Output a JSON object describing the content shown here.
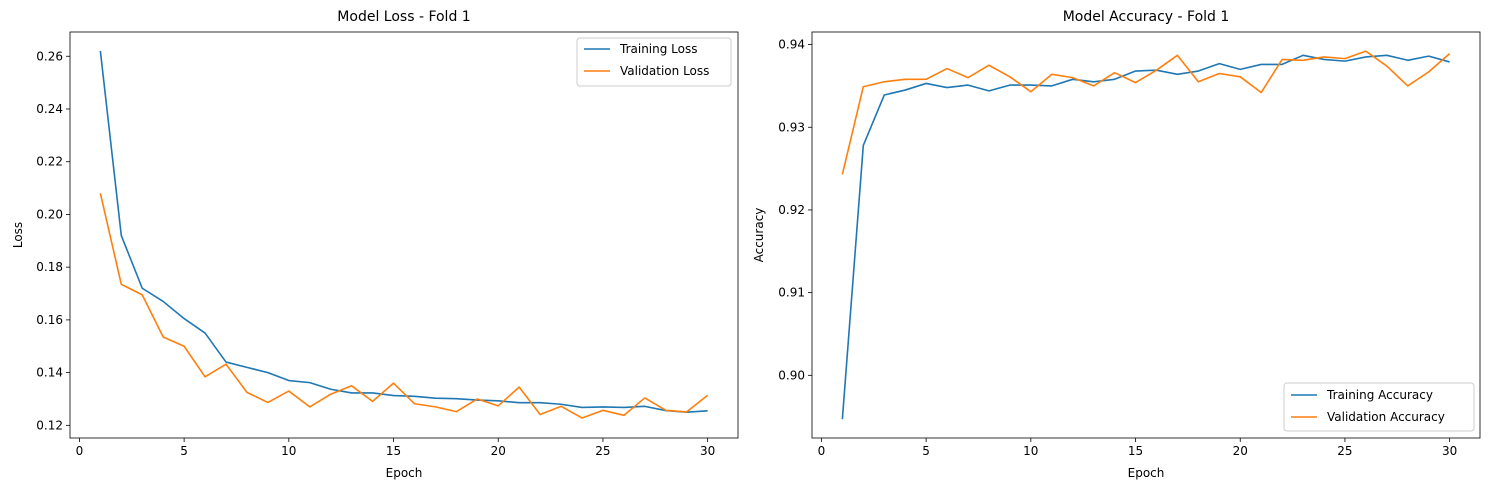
{
  "colors": {
    "training": "#1f77b4",
    "validation": "#ff7f0e"
  },
  "chart_data": [
    {
      "type": "line",
      "title": "Model Loss - Fold 1",
      "xlabel": "Epoch",
      "ylabel": "Loss",
      "xlim": [
        -0.45,
        31.45
      ],
      "ylim": [
        0.1152,
        0.2692
      ],
      "xticks": [
        0,
        5,
        10,
        15,
        20,
        25,
        30
      ],
      "yticks": [
        0.12,
        0.14,
        0.16,
        0.18,
        0.2,
        0.22,
        0.24,
        0.26
      ],
      "ytick_format": 2,
      "legend_position": "upper-right",
      "x": [
        1,
        2,
        3,
        4,
        5,
        6,
        7,
        8,
        9,
        10,
        11,
        12,
        13,
        14,
        15,
        16,
        17,
        18,
        19,
        20,
        21,
        22,
        23,
        24,
        25,
        26,
        27,
        28,
        29,
        30
      ],
      "series": [
        {
          "name": "Training Loss",
          "color": "#1f77b4",
          "values": [
            0.262,
            0.192,
            0.172,
            0.167,
            0.1605,
            0.155,
            0.144,
            0.142,
            0.14,
            0.137,
            0.1362,
            0.1337,
            0.1323,
            0.1323,
            0.1313,
            0.131,
            0.1303,
            0.1301,
            0.1296,
            0.1293,
            0.1286,
            0.1286,
            0.128,
            0.1268,
            0.127,
            0.1268,
            0.1272,
            0.1256,
            0.125,
            0.1255
          ]
        },
        {
          "name": "Validation Loss",
          "color": "#ff7f0e",
          "values": [
            0.208,
            0.1735,
            0.1695,
            0.1535,
            0.15,
            0.1384,
            0.1432,
            0.1325,
            0.1287,
            0.133,
            0.127,
            0.1318,
            0.135,
            0.1291,
            0.136,
            0.1282,
            0.127,
            0.1252,
            0.13,
            0.1274,
            0.1345,
            0.1241,
            0.1272,
            0.1228,
            0.1257,
            0.1238,
            0.1304,
            0.1257,
            0.1251,
            0.1314
          ]
        }
      ]
    },
    {
      "type": "line",
      "title": "Model Accuracy - Fold 1",
      "xlabel": "Epoch",
      "ylabel": "Accuracy",
      "xlim": [
        -0.45,
        31.45
      ],
      "ylim": [
        0.89242,
        0.94152
      ],
      "xticks": [
        0,
        5,
        10,
        15,
        20,
        25,
        30
      ],
      "yticks": [
        0.9,
        0.91,
        0.92,
        0.93,
        0.94
      ],
      "ytick_format": 2,
      "legend_position": "lower-right",
      "x": [
        1,
        2,
        3,
        4,
        5,
        6,
        7,
        8,
        9,
        10,
        11,
        12,
        13,
        14,
        15,
        16,
        17,
        18,
        19,
        20,
        21,
        22,
        23,
        24,
        25,
        26,
        27,
        28,
        29,
        30
      ],
      "series": [
        {
          "name": "Training Accuracy",
          "color": "#1f77b4",
          "values": [
            0.8947,
            0.9278,
            0.9339,
            0.9345,
            0.9353,
            0.9348,
            0.9351,
            0.9344,
            0.9351,
            0.9351,
            0.935,
            0.9358,
            0.9355,
            0.9358,
            0.9368,
            0.9369,
            0.9364,
            0.9368,
            0.9377,
            0.937,
            0.9376,
            0.9376,
            0.9387,
            0.9382,
            0.938,
            0.9385,
            0.9387,
            0.9381,
            0.9386,
            0.9379
          ]
        },
        {
          "name": "Validation Accuracy",
          "color": "#ff7f0e",
          "values": [
            0.9243,
            0.9349,
            0.9355,
            0.9358,
            0.9358,
            0.9371,
            0.936,
            0.9375,
            0.9361,
            0.9343,
            0.9364,
            0.936,
            0.935,
            0.9366,
            0.9354,
            0.9369,
            0.9387,
            0.9355,
            0.9365,
            0.9361,
            0.9342,
            0.9382,
            0.9381,
            0.9385,
            0.9383,
            0.9392,
            0.9374,
            0.935,
            0.9367,
            0.9389
          ]
        }
      ]
    }
  ]
}
